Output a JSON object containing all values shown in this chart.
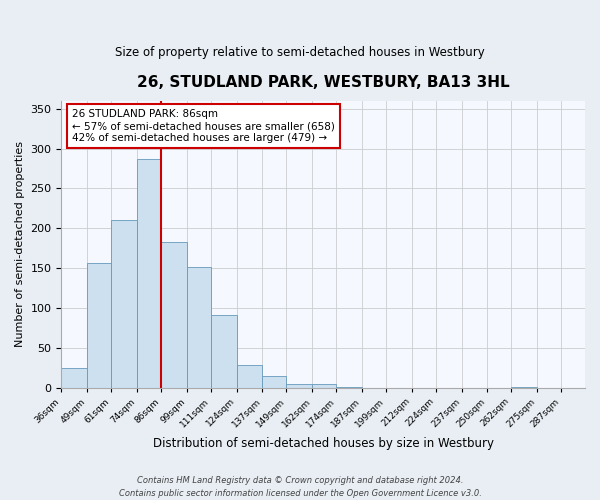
{
  "title": "26, STUDLAND PARK, WESTBURY, BA13 3HL",
  "subtitle": "Size of property relative to semi-detached houses in Westbury",
  "xlabel": "Distribution of semi-detached houses by size in Westbury",
  "ylabel": "Number of semi-detached properties",
  "bin_edges": [
    36,
    49,
    61,
    74,
    86,
    99,
    111,
    124,
    137,
    149,
    162,
    174,
    187,
    199,
    212,
    224,
    237,
    250,
    262,
    275,
    287
  ],
  "bin_labels": [
    "36sqm",
    "49sqm",
    "61sqm",
    "74sqm",
    "86sqm",
    "99sqm",
    "111sqm",
    "124sqm",
    "137sqm",
    "149sqm",
    "162sqm",
    "174sqm",
    "187sqm",
    "199sqm",
    "212sqm",
    "224sqm",
    "237sqm",
    "250sqm",
    "262sqm",
    "275sqm",
    "287sqm"
  ],
  "bar_heights": [
    25,
    157,
    210,
    287,
    183,
    152,
    91,
    28,
    15,
    5,
    5,
    1,
    0,
    0,
    0,
    0,
    0,
    0,
    1,
    0,
    0
  ],
  "bar_color": "#cce0f0",
  "bar_edge_color": "#6699bb",
  "property_value": 86,
  "vline_color": "#cc0000",
  "ylim": [
    0,
    360
  ],
  "yticks": [
    0,
    50,
    100,
    150,
    200,
    250,
    300,
    350
  ],
  "annotation_title": "26 STUDLAND PARK: 86sqm",
  "annotation_line1": "← 57% of semi-detached houses are smaller (658)",
  "annotation_line2": "42% of semi-detached houses are larger (479) →",
  "annotation_box_color": "#ffffff",
  "annotation_box_edge": "#cc0000",
  "footer_line1": "Contains HM Land Registry data © Crown copyright and database right 2024.",
  "footer_line2": "Contains public sector information licensed under the Open Government Licence v3.0.",
  "bg_color": "#e8eef4",
  "plot_bg_color": "#f5f8ff"
}
